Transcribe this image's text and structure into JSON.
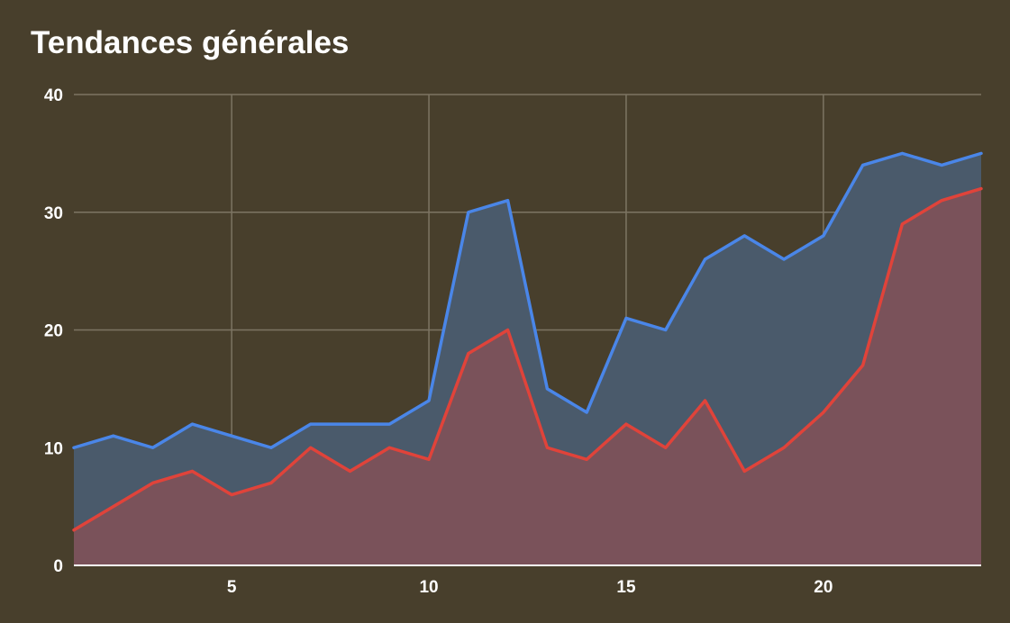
{
  "chart_data": {
    "type": "area",
    "title": "Tendances générales",
    "xlabel": "",
    "ylabel": "",
    "x": [
      1,
      2,
      3,
      4,
      5,
      6,
      7,
      8,
      9,
      10,
      11,
      12,
      13,
      14,
      15,
      16,
      17,
      18,
      19,
      20,
      21,
      22,
      23,
      24
    ],
    "xlim": [
      1,
      24
    ],
    "ylim": [
      0,
      40
    ],
    "x_ticks": [
      5,
      10,
      15,
      20
    ],
    "y_ticks": [
      0,
      10,
      20,
      30,
      40
    ],
    "grid": true,
    "legend": "none",
    "series": [
      {
        "color": "#4a86e8",
        "fill": "#4a5a6b",
        "values": [
          10,
          11,
          10,
          12,
          11,
          10,
          12,
          12,
          12,
          14,
          30,
          31,
          15,
          13,
          21,
          20,
          26,
          28,
          26,
          28,
          34,
          35,
          34,
          35
        ]
      },
      {
        "color": "#e0433a",
        "fill": "#7a525a",
        "values": [
          3,
          5,
          7,
          8,
          6,
          7,
          10,
          8,
          10,
          9,
          18,
          20,
          10,
          9,
          12,
          10,
          14,
          8,
          10,
          13,
          17,
          29,
          31,
          32
        ]
      }
    ]
  }
}
